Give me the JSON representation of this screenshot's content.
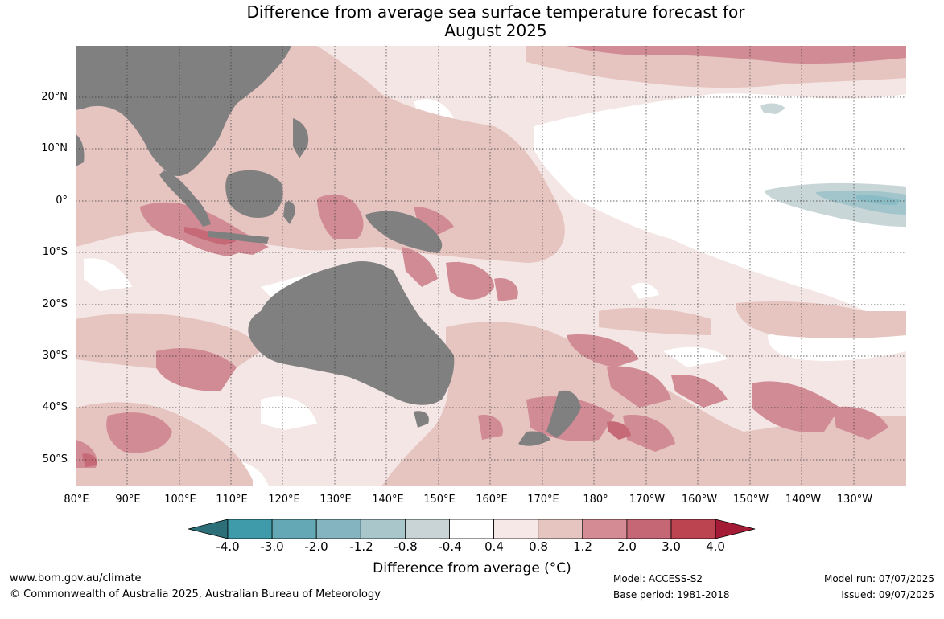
{
  "title": {
    "line1": "Difference from average sea surface temperature forecast for",
    "line2": "August 2025"
  },
  "map": {
    "latitude_labels": [
      "20°N",
      "10°N",
      "0°",
      "10°S",
      "20°S",
      "30°S",
      "40°S",
      "50°S"
    ],
    "longitude_labels": [
      "80°E",
      "90°E",
      "100°E",
      "110°E",
      "120°E",
      "130°E",
      "140°E",
      "150°E",
      "160°E",
      "170°E",
      "180°",
      "170°W",
      "160°W",
      "150°W",
      "140°W",
      "130°W"
    ],
    "colors": {
      "land": "#808080",
      "warm_weak": "#f3e6e4",
      "warm_mid": "#e6c5c1",
      "warm_strong": "#d18b95",
      "warm_stronger": "#c66a78",
      "cool_weak": "#c9d6d8",
      "cool_mid": "#a2c4cb",
      "cool_strong": "#8abcc6",
      "neutral": "#ffffff"
    }
  },
  "colorbar": {
    "tick_labels": [
      "-4.0",
      "-3.0",
      "-2.0",
      "-1.2",
      "-0.8",
      "-0.4",
      "0.4",
      "0.8",
      "1.2",
      "2.0",
      "3.0",
      "4.0"
    ],
    "segment_colors": [
      "#3f9ba9",
      "#64a8b5",
      "#84b4bf",
      "#a9c6ca",
      "#c8d4d6",
      "#ffffff",
      "#f5e8e6",
      "#e6c5c0",
      "#d58b93",
      "#c56774",
      "#bc4350"
    ],
    "low_arrow_color": "#2d6f78",
    "high_arrow_color": "#a31b34",
    "label": "Difference from average (°C)"
  },
  "footer": {
    "website": "www.bom.gov.au/climate",
    "copyright": "© Commonwealth of Australia 2025, Australian Bureau of Meteorology",
    "model": "Model: ACCESS-S2",
    "base_period": "Base period: 1981-2018",
    "model_run": "Model run: 07/07/2025",
    "issued": "Issued: 09/07/2025"
  }
}
